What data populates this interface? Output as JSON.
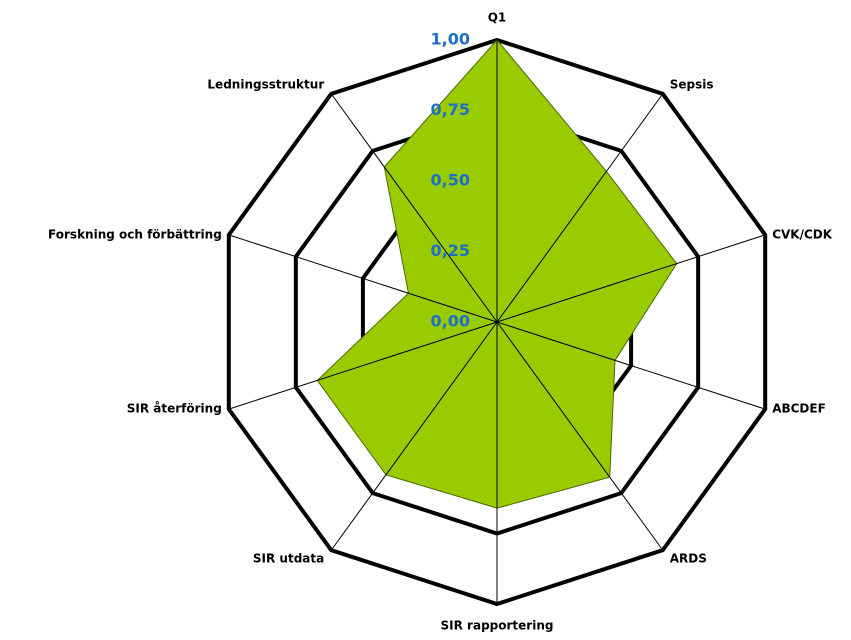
{
  "chart_data": {
    "type": "radar",
    "categories": [
      "Q1",
      "Sepsis",
      "CVK/CDK",
      "ABCDEF",
      "ARDS",
      "SIR rapportering",
      "SIR utdata",
      "SIR återföring",
      "Forskning och förbättring",
      "Ledningsstruktur"
    ],
    "values": [
      1.0,
      0.66,
      0.67,
      0.44,
      0.68,
      0.66,
      0.67,
      0.67,
      0.33,
      0.68
    ],
    "color": "#99cc00",
    "ylim": [
      0,
      1
    ],
    "yticks": [
      {
        "value": 0,
        "label": "0,00"
      },
      {
        "value": 0.25,
        "label": "0,25"
      },
      {
        "value": 0.5,
        "label": "0,50"
      },
      {
        "value": 0.75,
        "label": "0,75"
      },
      {
        "value": 1,
        "label": "1,00"
      }
    ],
    "grid": true
  }
}
